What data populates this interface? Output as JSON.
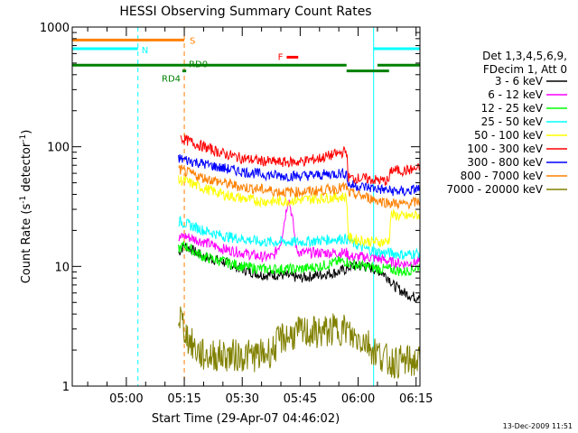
{
  "chart_data": {
    "type": "line",
    "title": "HESSI Observing Summary Count Rates",
    "xlabel": "Start Time (29-Apr-07 04:46:02)",
    "ylabel_main": "Count Rate (s",
    "ylabel_sup1": "-1",
    "ylabel_mid": " detector",
    "ylabel_sup2": "-1",
    "ylabel_end": ")",
    "ylog": true,
    "ylim": [
      1,
      1000
    ],
    "xlim_min": [
      286,
      376
    ],
    "y_ticks": [
      {
        "value": 1,
        "label": "1"
      },
      {
        "value": 10,
        "label": "10"
      },
      {
        "value": 100,
        "label": "100"
      },
      {
        "value": 1000,
        "label": "1000"
      }
    ],
    "x_ticks": [
      {
        "value": 300,
        "label": "05:00"
      },
      {
        "value": 315,
        "label": "05:15"
      },
      {
        "value": 330,
        "label": "05:30"
      },
      {
        "value": 345,
        "label": "05:45"
      },
      {
        "value": 360,
        "label": "06:00"
      },
      {
        "value": 375,
        "label": "06:15"
      }
    ],
    "legend_header": [
      "Det 1,3,4,5,6,9,",
      "FDecim 1, Att 0"
    ],
    "series": [
      {
        "name": "3 - 6 keV",
        "color": "#000000",
        "points": [
          [
            313.5,
            13
          ],
          [
            315,
            15
          ],
          [
            320,
            12
          ],
          [
            325,
            11
          ],
          [
            330,
            9.5
          ],
          [
            335,
            8.5
          ],
          [
            340,
            8.5
          ],
          [
            345,
            8
          ],
          [
            350,
            8.5
          ],
          [
            355,
            9
          ],
          [
            357,
            9.5
          ],
          [
            358,
            10
          ],
          [
            362,
            10
          ],
          [
            364,
            9.5
          ],
          [
            366,
            9
          ],
          [
            368,
            8
          ],
          [
            369,
            7
          ],
          [
            372,
            6
          ],
          [
            375,
            5.5
          ],
          [
            376,
            6
          ]
        ]
      },
      {
        "name": "6 - 12 keV",
        "color": "#ff00ff",
        "points": [
          [
            313.5,
            17
          ],
          [
            315,
            18
          ],
          [
            320,
            16
          ],
          [
            325,
            14
          ],
          [
            330,
            13
          ],
          [
            335,
            12
          ],
          [
            338,
            12
          ],
          [
            340,
            16
          ],
          [
            341,
            25
          ],
          [
            342,
            38
          ],
          [
            343,
            25
          ],
          [
            344,
            14
          ],
          [
            345,
            13
          ],
          [
            350,
            13
          ],
          [
            355,
            13
          ],
          [
            357,
            13
          ],
          [
            358,
            12
          ],
          [
            362,
            12
          ],
          [
            366,
            11.5
          ],
          [
            368,
            11
          ],
          [
            372,
            10.5
          ],
          [
            376,
            11
          ]
        ]
      },
      {
        "name": "12 - 25 keV",
        "color": "#00ff00",
        "points": [
          [
            313.5,
            14
          ],
          [
            315,
            15
          ],
          [
            320,
            12
          ],
          [
            325,
            11
          ],
          [
            330,
            10
          ],
          [
            335,
            9.5
          ],
          [
            340,
            9.5
          ],
          [
            345,
            9.5
          ],
          [
            350,
            10
          ],
          [
            355,
            11
          ],
          [
            357,
            11
          ],
          [
            358,
            10.5
          ],
          [
            362,
            10
          ],
          [
            366,
            9.5
          ],
          [
            368,
            9.5
          ],
          [
            372,
            9
          ],
          [
            376,
            10
          ]
        ]
      },
      {
        "name": "25 - 50 keV",
        "color": "#00ffff",
        "points": [
          [
            313.5,
            24
          ],
          [
            315,
            23
          ],
          [
            320,
            20
          ],
          [
            325,
            18
          ],
          [
            330,
            17
          ],
          [
            335,
            16
          ],
          [
            340,
            16
          ],
          [
            345,
            16
          ],
          [
            350,
            16.5
          ],
          [
            355,
            17
          ],
          [
            357,
            17
          ],
          [
            358,
            16
          ],
          [
            362,
            14
          ],
          [
            366,
            13
          ],
          [
            368,
            13
          ],
          [
            372,
            12.5
          ],
          [
            376,
            13
          ]
        ]
      },
      {
        "name": "50 - 100 keV",
        "color": "#ffff00",
        "points": [
          [
            313.5,
            52
          ],
          [
            315,
            52
          ],
          [
            320,
            45
          ],
          [
            325,
            40
          ],
          [
            330,
            37
          ],
          [
            335,
            35
          ],
          [
            340,
            35
          ],
          [
            345,
            36
          ],
          [
            350,
            37
          ],
          [
            355,
            38
          ],
          [
            357,
            38
          ],
          [
            357.5,
            18
          ],
          [
            358,
            17
          ],
          [
            364,
            16
          ],
          [
            367,
            16
          ],
          [
            368,
            16.5
          ],
          [
            368.5,
            27
          ],
          [
            372,
            26
          ],
          [
            376,
            27
          ]
        ]
      },
      {
        "name": "100 - 300 keV",
        "color": "#ff0000",
        "points": [
          [
            314,
            118
          ],
          [
            315,
            115
          ],
          [
            320,
            100
          ],
          [
            325,
            88
          ],
          [
            330,
            80
          ],
          [
            335,
            76
          ],
          [
            340,
            74
          ],
          [
            345,
            75
          ],
          [
            350,
            80
          ],
          [
            355,
            88
          ],
          [
            357,
            92
          ],
          [
            357.5,
            55
          ],
          [
            362,
            54
          ],
          [
            366,
            52
          ],
          [
            368,
            52
          ],
          [
            368.5,
            64
          ],
          [
            372,
            63
          ],
          [
            376,
            66
          ]
        ]
      },
      {
        "name": "300 - 800 keV",
        "color": "#0000ff",
        "points": [
          [
            313.5,
            80
          ],
          [
            315,
            78
          ],
          [
            320,
            72
          ],
          [
            325,
            66
          ],
          [
            330,
            62
          ],
          [
            335,
            59
          ],
          [
            340,
            57
          ],
          [
            345,
            57
          ],
          [
            350,
            58
          ],
          [
            355,
            60
          ],
          [
            357,
            60
          ],
          [
            357.5,
            48
          ],
          [
            362,
            46
          ],
          [
            366,
            44
          ],
          [
            368,
            43
          ],
          [
            372,
            42
          ],
          [
            376,
            45
          ]
        ]
      },
      {
        "name": "800 - 7000 keV",
        "color": "#ff8000",
        "points": [
          [
            313.5,
            65
          ],
          [
            315,
            62
          ],
          [
            320,
            55
          ],
          [
            325,
            50
          ],
          [
            330,
            46
          ],
          [
            335,
            44
          ],
          [
            340,
            42
          ],
          [
            345,
            42
          ],
          [
            350,
            43
          ],
          [
            355,
            45
          ],
          [
            357,
            46
          ],
          [
            357.5,
            41
          ],
          [
            362,
            38
          ],
          [
            366,
            35
          ],
          [
            368,
            34
          ],
          [
            372,
            33
          ],
          [
            376,
            35
          ]
        ]
      },
      {
        "name": "7000 - 20000 keV",
        "color": "#808000",
        "points": [
          [
            313.5,
            3.5
          ],
          [
            314,
            3.8
          ],
          [
            315,
            3
          ],
          [
            316,
            2.5
          ],
          [
            318,
            2
          ],
          [
            320,
            1.8
          ],
          [
            325,
            1.8
          ],
          [
            330,
            1.8
          ],
          [
            335,
            1.8
          ],
          [
            338,
            2
          ],
          [
            340,
            2.5
          ],
          [
            345,
            2.8
          ],
          [
            350,
            2.8
          ],
          [
            355,
            3
          ],
          [
            357,
            3
          ],
          [
            358,
            2.6
          ],
          [
            362,
            2.4
          ],
          [
            364,
            2
          ],
          [
            366,
            1.8
          ],
          [
            368,
            1.6
          ],
          [
            372,
            1.6
          ],
          [
            376,
            1.6
          ]
        ]
      }
    ],
    "state_bars": [
      {
        "label": "S",
        "color": "#ff8000",
        "y": 780,
        "segments": [
          [
            286,
            315
          ]
        ]
      },
      {
        "label": "N",
        "color": "#00ffff",
        "y": 660,
        "segments": [
          [
            286,
            303
          ],
          [
            364,
            376
          ]
        ]
      },
      {
        "label": "F",
        "color": "#ff0000",
        "y": 560,
        "segments": [
          [
            341.5,
            344.5
          ]
        ]
      },
      {
        "label": "RD0",
        "color": "#008000",
        "y": 480,
        "segments": [
          [
            286,
            357
          ],
          [
            365,
            376
          ]
        ]
      },
      {
        "label": "RD4",
        "color": "#008000",
        "y": 430,
        "segments": [
          [
            314.5,
            315.5
          ],
          [
            357,
            368
          ]
        ]
      }
    ],
    "vlines": [
      {
        "x": 286,
        "color": "#00ffff",
        "dashed": false
      },
      {
        "x": 303,
        "color": "#00ffff",
        "dashed": true
      },
      {
        "x": 315,
        "color": "#ff8000",
        "dashed": true
      },
      {
        "x": 364,
        "color": "#00ffff",
        "dashed": false
      },
      {
        "x": 376,
        "color": "#00ffff",
        "dashed": true
      }
    ]
  },
  "footer": {
    "timestamp": "13-Dec-2009 11:51"
  }
}
